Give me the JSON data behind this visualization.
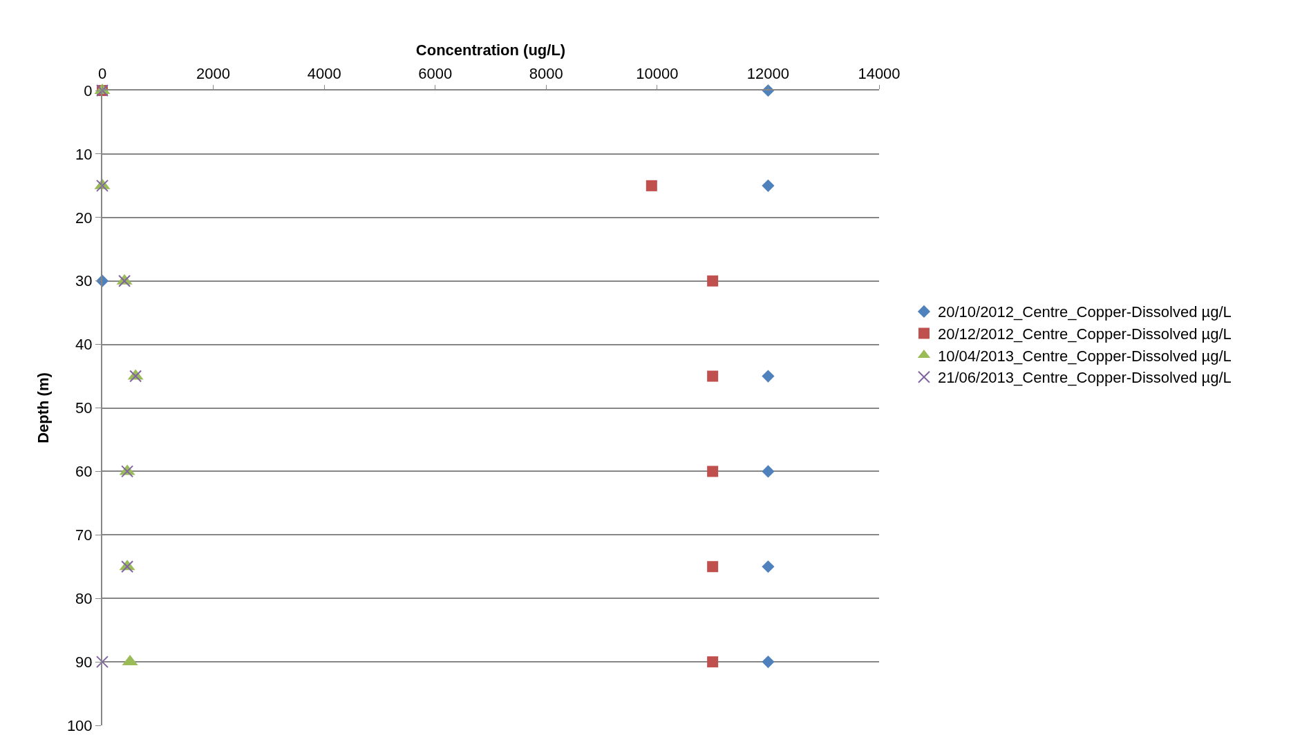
{
  "chart_data": {
    "type": "scatter",
    "xlabel": "Concentration (ug/L)",
    "ylabel": "Depth (m)",
    "xlim": [
      0,
      14000
    ],
    "xticks": [
      0,
      2000,
      4000,
      6000,
      8000,
      10000,
      12000,
      14000
    ],
    "ylim": [
      100,
      0
    ],
    "yticks": [
      0,
      10,
      20,
      30,
      40,
      50,
      60,
      70,
      80,
      90,
      100
    ],
    "grid": "y",
    "legend": "right",
    "series": [
      {
        "name": "20/10/2012_Centre_Copper-Dissolved µg/L",
        "color": "#4f81bd",
        "marker": "diamond",
        "x": [
          12000,
          12000,
          0,
          12000,
          12000,
          12000,
          12000
        ],
        "values": [
          0,
          15,
          30,
          45,
          60,
          75,
          90
        ]
      },
      {
        "name": "20/12/2012_Centre_Copper-Dissolved µg/L",
        "color": "#c0504d",
        "marker": "square",
        "x": [
          0,
          9900,
          11000,
          11000,
          11000,
          11000,
          11000
        ],
        "values": [
          0,
          15,
          30,
          45,
          60,
          75,
          90
        ]
      },
      {
        "name": "10/04/2013_Centre_Copper-Dissolved µg/L",
        "color": "#9bbb59",
        "marker": "triangle",
        "x": [
          0,
          0,
          400,
          600,
          450,
          450,
          500
        ],
        "values": [
          0,
          15,
          30,
          45,
          60,
          75,
          90
        ]
      },
      {
        "name": "21/06/2013_Centre_Copper-Dissolved µg/L",
        "color": "#8064a2",
        "marker": "cross",
        "x": [
          0,
          0,
          400,
          600,
          450,
          450,
          0
        ],
        "values": [
          0,
          15,
          30,
          45,
          60,
          75,
          90
        ]
      }
    ]
  }
}
